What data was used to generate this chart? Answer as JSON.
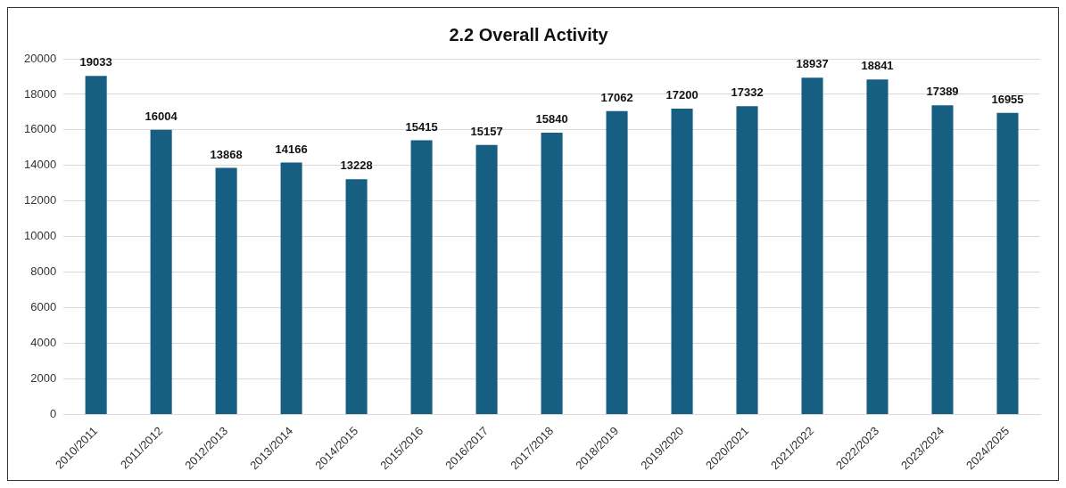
{
  "chart_data": {
    "type": "bar",
    "title": "2.2 Overall Activity",
    "categories": [
      "2010/2011",
      "2011/2012",
      "2012/2013",
      "2013/2014",
      "2014/2015",
      "2015/2016",
      "2016/2017",
      "2017/2018",
      "2018/2019",
      "2019/2020",
      "2020/2021",
      "2021/2022",
      "2022/2023",
      "2023/2024",
      "2024/2025"
    ],
    "values": [
      19033,
      16004,
      13868,
      14166,
      13228,
      15415,
      15157,
      15840,
      17062,
      17200,
      17332,
      18937,
      18841,
      17389,
      16955
    ],
    "color": "#175f82",
    "ylim": [
      0,
      20000
    ],
    "yticks": [
      0,
      2000,
      4000,
      6000,
      8000,
      10000,
      12000,
      14000,
      16000,
      18000,
      20000
    ],
    "grid": "y",
    "legend": false,
    "data_labels": true
  }
}
